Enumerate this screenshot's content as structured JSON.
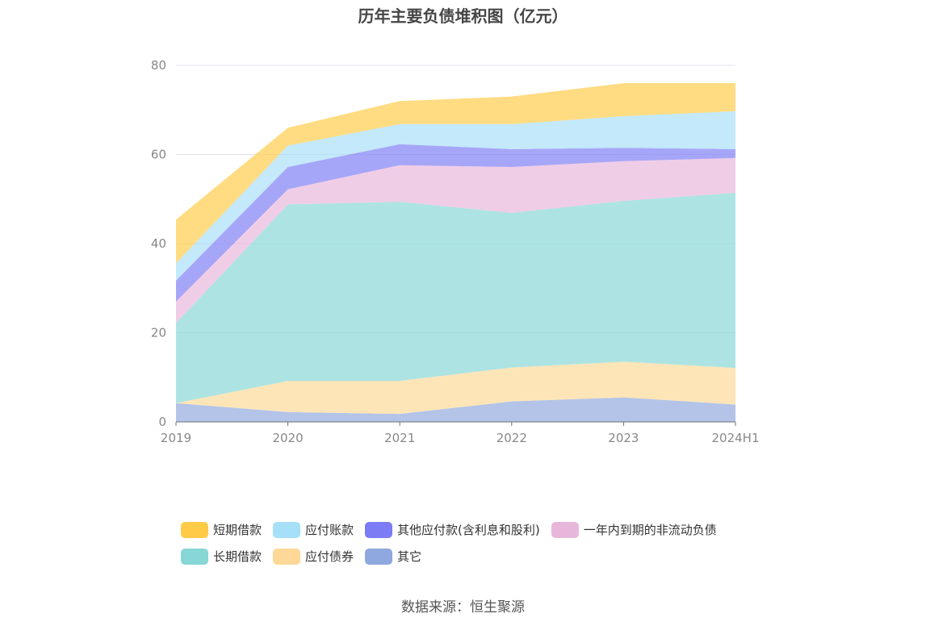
{
  "chart_data": {
    "type": "area",
    "stacked": true,
    "title": "历年主要负债堆积图（亿元）",
    "x": [
      "2019",
      "2020",
      "2021",
      "2022",
      "2023",
      "2024H1"
    ],
    "ylim": [
      0,
      80
    ],
    "yticks": [
      0,
      20,
      40,
      60,
      80
    ],
    "grid": true,
    "legend_position": "bottom",
    "series": [
      {
        "name": "其它",
        "color": "#8fa8dd",
        "values": [
          4.2,
          2.2,
          1.8,
          4.6,
          5.5,
          3.9
        ]
      },
      {
        "name": "应付债券",
        "color": "#fdd897",
        "values": [
          0.0,
          7.0,
          7.4,
          7.6,
          8.0,
          8.2
        ]
      },
      {
        "name": "长期借款",
        "color": "#86d7d5",
        "values": [
          18.0,
          39.6,
          40.2,
          34.7,
          36.1,
          39.3
        ]
      },
      {
        "name": "一年内到期的非流动负债",
        "color": "#e9b6db",
        "values": [
          4.8,
          3.4,
          8.2,
          10.3,
          8.9,
          7.8
        ]
      },
      {
        "name": "其他应付款(含利息和股利)",
        "color": "#7c7cf5",
        "values": [
          4.7,
          5.0,
          4.7,
          4.0,
          3.0,
          2.0
        ]
      },
      {
        "name": "应付账款",
        "color": "#a6dff8",
        "values": [
          3.9,
          4.8,
          4.5,
          5.6,
          7.1,
          8.5
        ]
      },
      {
        "name": "短期借款",
        "color": "#ffcb47",
        "values": [
          9.8,
          4.0,
          5.2,
          6.2,
          7.4,
          6.3
        ]
      }
    ]
  },
  "legend": {
    "row1": [
      "短期借款",
      "应付账款",
      "其他应付款(含利息和股利)",
      "一年内到期的非流动负债"
    ],
    "row2": [
      "长期借款",
      "应付债券",
      "其它"
    ]
  },
  "legend_colors": {
    "短期借款": "#ffcb47",
    "应付账款": "#a6dff8",
    "其他应付款(含利息和股利)": "#7c7cf5",
    "一年内到期的非流动负债": "#e9b6db",
    "长期借款": "#86d7d5",
    "应付债券": "#fdd897",
    "其它": "#8fa8dd"
  },
  "source_text": "数据来源：恒生聚源"
}
